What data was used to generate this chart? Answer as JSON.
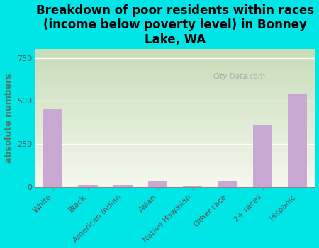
{
  "title": "Breakdown of poor residents within races\n(income below poverty level) in Bonney\nLake, WA",
  "categories": [
    "White",
    "Black",
    "American Indian",
    "Asian",
    "Native Hawaiian",
    "Other race",
    "2+ races",
    "Hispanic"
  ],
  "values": [
    450,
    10,
    12,
    30,
    2,
    30,
    360,
    540
  ],
  "bar_color": "#c9a8d4",
  "ylabel": "absolute numbers",
  "ylim": [
    0,
    800
  ],
  "yticks": [
    0,
    250,
    500,
    750
  ],
  "bg_outer": "#00e5e5",
  "bg_plot_gradient_top": "#c8ddb8",
  "bg_plot_gradient_bottom": "#f5f8ee",
  "watermark": "City-Data.com",
  "title_fontsize": 12,
  "ylabel_fontsize": 9,
  "tick_fontsize": 8,
  "ylabel_color": "#4a7a6a",
  "tick_color": "#555555"
}
